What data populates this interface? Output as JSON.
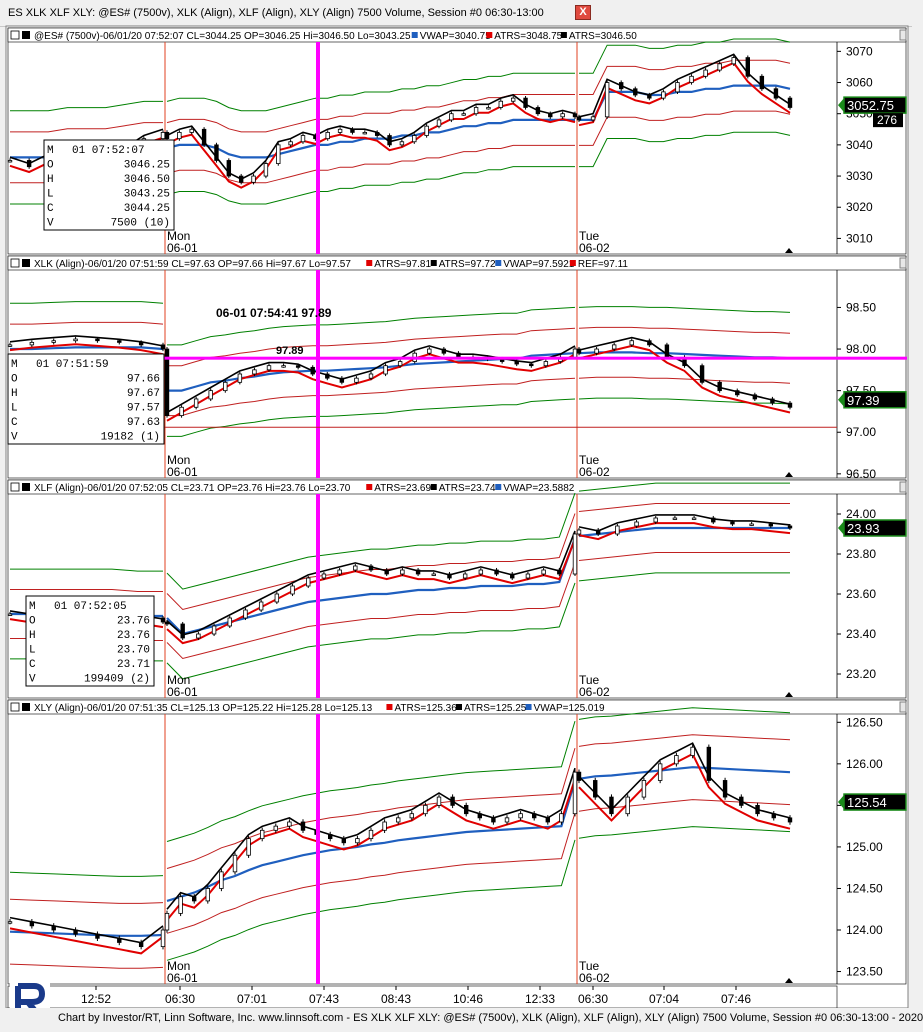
{
  "window": {
    "title": "ES XLK XLF XLY: @ES# (7500v), XLK (Align), XLF (Align), XLY (Align) 7500 Volume, Session #0 06:30-13:00",
    "close_label": "X"
  },
  "footer": {
    "text": "Chart by Investor/RT, Linn Software, Inc. www.linnsoft.com - ES XLK XLF XLY: @ES# (7500v), XLK (Align), XLF (Align), XLY (Align) 7500 Volume, Session #0 06:30-13:00 - 2020"
  },
  "time_axis": [
    "12:52",
    "06:30",
    "07:01",
    "07:43",
    "08:43",
    "10:46",
    "12:33",
    "06:30",
    "07:04",
    "07:46"
  ],
  "panes": [
    {
      "id": "es",
      "header": {
        "title": "@ES# (7500v)-06/01/20 07:52:07 CL=3044.25 OP=3046.25 Hi=3046.50 Lo=3043.25",
        "ind1": "VWAP=3040.75",
        "ind2": "ATRS=3048.75",
        "ind3": "ATRS=3046.50"
      },
      "y_ticks": [
        "3070",
        "3060",
        "3050",
        "3040",
        "3030",
        "3020",
        "3010"
      ],
      "y_range": [
        3005,
        3073
      ],
      "price_tag": "3052.75",
      "volume_tag": "276",
      "day_labels": [
        {
          "day": "Mon",
          "date": "06-01"
        },
        {
          "day": "Tue",
          "date": "06-02"
        }
      ],
      "ohlc_box": [
        {
          "k": "M",
          "v": "01 07:52:07"
        },
        {
          "k": "O",
          "v": "3046.25"
        },
        {
          "k": "H",
          "v": "3046.50"
        },
        {
          "k": "L",
          "v": "3043.25"
        },
        {
          "k": "C",
          "v": "3044.25"
        },
        {
          "k": "V",
          "v": "7500 (10)"
        }
      ],
      "chart_data": {
        "type": "candlestick",
        "close": [
          3035,
          3033,
          3036,
          3038,
          3034,
          3036,
          3038,
          3042,
          3044,
          3042,
          3044,
          3045,
          3040,
          3035,
          3030,
          3028,
          3030,
          3034,
          3040,
          3041,
          3043,
          3042,
          3044,
          3045,
          3044,
          3044,
          3043,
          3040,
          3041,
          3043,
          3046,
          3048,
          3050,
          3050,
          3052,
          3052,
          3054,
          3055,
          3052,
          3050,
          3049,
          3050,
          3049,
          3048,
          3049,
          3060,
          3058,
          3056,
          3055,
          3057,
          3060,
          3062,
          3064,
          3066,
          3068,
          3062,
          3058,
          3055,
          3052
        ],
        "vwap": [
          3036,
          3036,
          3036,
          3037,
          3037,
          3037,
          3038,
          3039,
          3039,
          3039,
          3040,
          3040,
          3040,
          3039,
          3037,
          3036,
          3036,
          3036,
          3037,
          3038,
          3039,
          3040,
          3040,
          3041,
          3041,
          3042,
          3042,
          3042,
          3043,
          3043,
          3044,
          3044,
          3045,
          3046,
          3046,
          3047,
          3047,
          3048,
          3048,
          3048,
          3048,
          3048,
          3048,
          3048,
          3048,
          3057,
          3057,
          3057,
          3056,
          3056,
          3057,
          3057,
          3058,
          3058,
          3059,
          3059,
          3059,
          3059,
          3058
        ]
      }
    },
    {
      "id": "xlk",
      "header": {
        "title": "XLK (Align)-06/01/20 07:51:59 CL=97.63 OP=97.66 Hi=97.67 Lo=97.57",
        "ind1": "ATRS=97.81",
        "ind2": "ATRS=97.72",
        "ind3": "VWAP=97.5921",
        "ind4": "REF=97.11"
      },
      "y_ticks": [
        "98.50",
        "98.00",
        "97.50",
        "97.00",
        "96.50"
      ],
      "y_range": [
        96.45,
        98.95
      ],
      "price_tag": "97.39",
      "cursor_label": "06-01 07:54:41 97.89",
      "cursor_price_label": "97.89",
      "day_labels": [
        {
          "day": "Mon",
          "date": "06-01"
        },
        {
          "day": "Tue",
          "date": "06-02"
        }
      ],
      "ohlc_box": [
        {
          "k": "M",
          "v": "01 07:51:59"
        },
        {
          "k": "O",
          "v": "97.66"
        },
        {
          "k": "H",
          "v": "97.67"
        },
        {
          "k": "L",
          "v": "97.57"
        },
        {
          "k": "C",
          "v": "97.63"
        },
        {
          "k": "V",
          "v": "19182 (1)"
        }
      ],
      "chart_data": {
        "type": "candlestick",
        "close": [
          98.05,
          98.08,
          98.1,
          98.12,
          98.1,
          98.08,
          98.05,
          98.0,
          97.2,
          97.3,
          97.4,
          97.5,
          97.6,
          97.7,
          97.75,
          97.8,
          97.8,
          97.78,
          97.7,
          97.65,
          97.6,
          97.65,
          97.7,
          97.8,
          97.85,
          97.95,
          98.0,
          97.95,
          97.9,
          97.9,
          97.88,
          97.85,
          97.82,
          97.8,
          97.85,
          97.9,
          98.0,
          97.95,
          98.0,
          98.05,
          98.1,
          98.05,
          97.9,
          97.8,
          97.6,
          97.5,
          97.45,
          97.4,
          97.35,
          97.3
        ],
        "vwap": [
          98.0,
          98.0,
          98.01,
          98.02,
          98.02,
          98.02,
          98.02,
          98.0,
          97.5,
          97.5,
          97.55,
          97.6,
          97.62,
          97.65,
          97.67,
          97.7,
          97.72,
          97.73,
          97.74,
          97.74,
          97.75,
          97.76,
          97.77,
          97.78,
          97.8,
          97.82,
          97.83,
          97.84,
          97.85,
          97.86,
          97.87,
          97.88,
          97.88,
          97.92,
          97.93,
          97.94,
          97.95,
          97.95,
          97.96,
          97.96,
          97.96,
          97.95,
          97.95,
          97.94,
          97.93,
          97.92,
          97.91,
          97.9,
          97.9,
          97.89
        ]
      }
    },
    {
      "id": "xlf",
      "header": {
        "title": "XLF (Align)-06/01/20 07:52:05 CL=23.71 OP=23.76 Hi=23.76 Lo=23.70",
        "ind1": "ATRS=23.69",
        "ind2": "ATRS=23.74",
        "ind3": "VWAP=23.5882"
      },
      "y_ticks": [
        "24.00",
        "23.80",
        "23.60",
        "23.40",
        "23.20"
      ],
      "y_range": [
        23.08,
        24.1
      ],
      "price_tag": "23.93",
      "day_labels": [
        {
          "day": "Mon",
          "date": "06-01"
        },
        {
          "day": "Tue",
          "date": "06-02"
        }
      ],
      "ohlc_box": [
        {
          "k": "M",
          "v": "01 07:52:05"
        },
        {
          "k": "O",
          "v": "23.76"
        },
        {
          "k": "H",
          "v": "23.76"
        },
        {
          "k": "L",
          "v": "23.70"
        },
        {
          "k": "C",
          "v": "23.71"
        },
        {
          "k": "V",
          "v": "199409 (2)"
        }
      ],
      "chart_data": {
        "type": "candlestick",
        "close": [
          23.5,
          23.48,
          23.5,
          23.52,
          23.5,
          23.48,
          23.46,
          23.45,
          23.38,
          23.4,
          23.44,
          23.48,
          23.52,
          23.56,
          23.6,
          23.64,
          23.68,
          23.7,
          23.72,
          23.74,
          23.72,
          23.7,
          23.72,
          23.7,
          23.7,
          23.68,
          23.7,
          23.72,
          23.7,
          23.68,
          23.7,
          23.72,
          23.7,
          23.9,
          23.92,
          23.9,
          23.94,
          23.96,
          23.98,
          23.98,
          23.98,
          23.96,
          23.95,
          23.95,
          23.94,
          23.93
        ],
        "vwap": [
          23.5,
          23.5,
          23.5,
          23.5,
          23.5,
          23.49,
          23.49,
          23.48,
          23.4,
          23.42,
          23.44,
          23.46,
          23.48,
          23.5,
          23.52,
          23.54,
          23.56,
          23.57,
          23.58,
          23.59,
          23.6,
          23.6,
          23.61,
          23.62,
          23.62,
          23.63,
          23.63,
          23.64,
          23.64,
          23.64,
          23.65,
          23.65,
          23.66,
          23.88,
          23.89,
          23.9,
          23.91,
          23.92,
          23.93,
          23.93,
          23.93,
          23.93,
          23.93,
          23.93,
          23.93,
          23.93
        ]
      }
    },
    {
      "id": "xly",
      "header": {
        "title": "XLY (Align)-06/01/20 07:51:35 CL=125.13 OP=125.22 Hi=125.28 Lo=125.13",
        "ind1": "ATRS=125.36",
        "ind2": "ATRS=125.25",
        "ind3": "VWAP=125.019"
      },
      "y_ticks": [
        "126.50",
        "126.00",
        "125.50",
        "125.00",
        "124.50",
        "124.00",
        "123.50"
      ],
      "y_range": [
        123.35,
        126.6
      ],
      "price_tag": "125.54",
      "day_labels": [
        {
          "day": "Mon",
          "date": "06-01"
        },
        {
          "day": "Tue",
          "date": "06-02"
        }
      ],
      "chart_data": {
        "type": "candlestick",
        "close": [
          124.1,
          124.05,
          124.0,
          123.95,
          123.9,
          123.85,
          123.8,
          124.0,
          124.2,
          124.4,
          124.35,
          124.5,
          124.7,
          124.9,
          125.1,
          125.2,
          125.25,
          125.3,
          125.2,
          125.15,
          125.1,
          125.05,
          125.1,
          125.2,
          125.3,
          125.35,
          125.4,
          125.5,
          125.6,
          125.5,
          125.4,
          125.35,
          125.3,
          125.35,
          125.4,
          125.35,
          125.3,
          125.4,
          125.9,
          125.8,
          125.6,
          125.4,
          125.6,
          125.8,
          126.0,
          126.1,
          126.2,
          125.8,
          125.6,
          125.5,
          125.4,
          125.35,
          125.3
        ],
        "vwap": [
          123.98,
          123.97,
          123.96,
          123.95,
          123.94,
          123.93,
          123.93,
          123.94,
          124.35,
          124.4,
          124.45,
          124.52,
          124.6,
          124.65,
          124.72,
          124.78,
          124.82,
          124.86,
          124.9,
          124.93,
          124.96,
          124.98,
          125.0,
          125.03,
          125.05,
          125.08,
          125.1,
          125.12,
          125.14,
          125.16,
          125.18,
          125.19,
          125.2,
          125.21,
          125.22,
          125.23,
          125.24,
          125.25,
          125.8,
          125.82,
          125.85,
          125.86,
          125.88,
          125.9,
          125.92,
          125.94,
          125.96,
          125.95,
          125.94,
          125.93,
          125.92,
          125.91,
          125.9
        ]
      }
    }
  ],
  "colors": {
    "candle": "#000000",
    "vwap": "#1f5fbf",
    "atrs_red": "#e00000",
    "band_green": "#008000",
    "band_red": "#c02020",
    "cursor_magenta": "#ff00ff",
    "session_line": "#e04020",
    "grid_bg": "#ffffff"
  }
}
